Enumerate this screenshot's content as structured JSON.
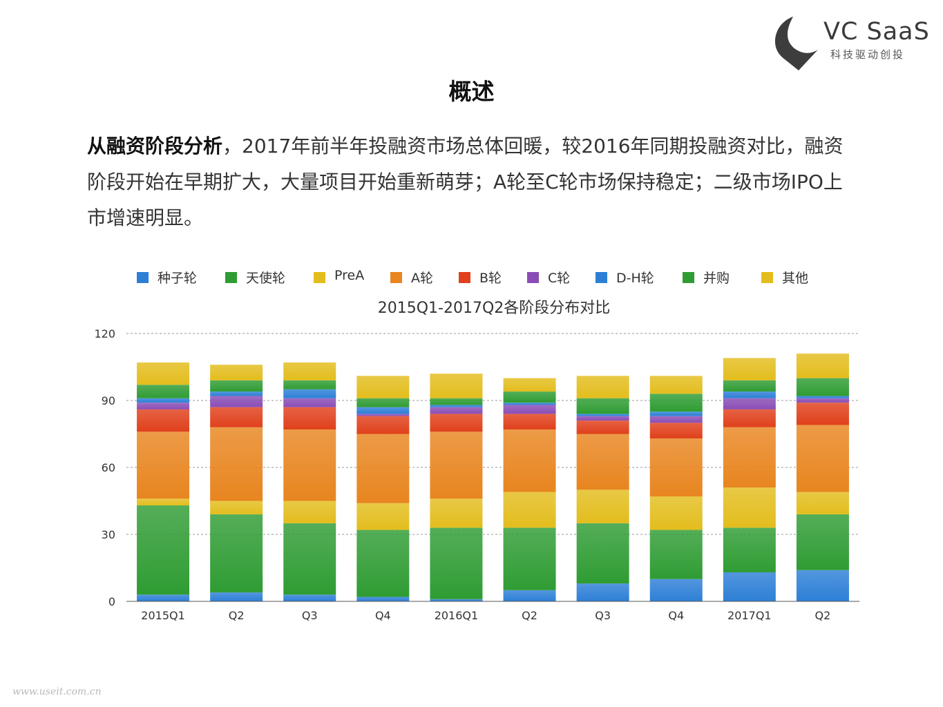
{
  "logo": {
    "brand": "VC SaaS",
    "slogan": "科技驱动创投",
    "icon": "vc-saas-logo-icon",
    "color": "#3d3d3d"
  },
  "page": {
    "title": "概述",
    "summary_lead": "从融资阶段分析",
    "summary_body": "，2017年前半年投融资市场总体回暖，较2016年同期投融资对比，融资阶段开始在早期扩大，大量项目开始重新萌芽；A轮至C轮市场保持稳定；二级市场IPO上市增速明显。"
  },
  "watermark": "www.useit.com.cn",
  "chart_data": {
    "type": "bar",
    "stacked": true,
    "title": "2015Q1-2017Q2各阶段分布对比",
    "xlabel": "",
    "ylabel": "",
    "ylim": [
      0,
      120
    ],
    "yticks": [
      0,
      30,
      60,
      90,
      120
    ],
    "grid": true,
    "legend_position": "top",
    "categories": [
      "2015Q1",
      "Q2",
      "Q3",
      "Q4",
      "2016Q1",
      "Q2",
      "Q3",
      "Q4",
      "2017Q1",
      "Q2"
    ],
    "series": [
      {
        "name": "种子轮",
        "color": "#2d7fd6",
        "values": [
          3,
          4,
          3,
          2,
          1,
          5,
          8,
          10,
          13,
          14
        ]
      },
      {
        "name": "天使轮",
        "color": "#2f9c33",
        "values": [
          40,
          35,
          32,
          30,
          32,
          28,
          27,
          22,
          20,
          25
        ]
      },
      {
        "name": "PreA",
        "color": "#e3bd1d",
        "values": [
          3,
          6,
          10,
          12,
          13,
          16,
          15,
          15,
          18,
          10
        ]
      },
      {
        "name": "A轮",
        "color": "#e8851f",
        "values": [
          30,
          33,
          32,
          31,
          30,
          28,
          25,
          26,
          27,
          30
        ]
      },
      {
        "name": "B轮",
        "color": "#e0401b",
        "values": [
          10,
          9,
          10,
          8,
          8,
          7,
          6,
          7,
          8,
          10
        ]
      },
      {
        "name": "C轮",
        "color": "#8a4db5",
        "values": [
          3,
          5,
          4,
          1,
          3,
          4,
          2,
          3,
          5,
          2
        ]
      },
      {
        "name": "D-H轮",
        "color": "#2d7fd6",
        "values": [
          2,
          2,
          4,
          3,
          1,
          1,
          1,
          2,
          3,
          1
        ]
      },
      {
        "name": "并购",
        "color": "#2f9c33",
        "values": [
          6,
          5,
          4,
          4,
          3,
          5,
          7,
          8,
          5,
          8
        ]
      },
      {
        "name": "其他",
        "color": "#e3bd1d",
        "values": [
          10,
          7,
          8,
          10,
          11,
          6,
          10,
          8,
          10,
          11
        ]
      }
    ]
  }
}
